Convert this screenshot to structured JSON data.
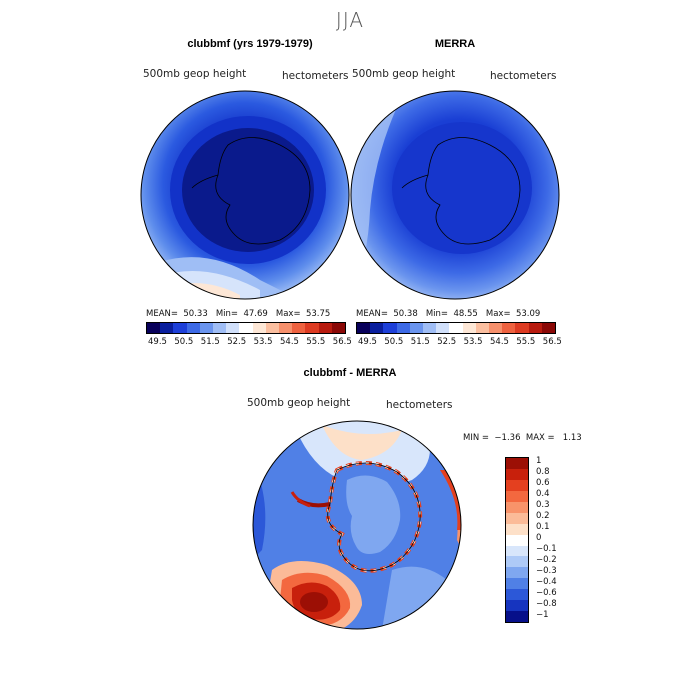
{
  "page": {
    "title": "JJA"
  },
  "panels": [
    {
      "title": "clubbmf (yrs 1979-1979)",
      "left_label": "500mb geop height",
      "right_label": "hectometers",
      "stats": "MEAN=  50.33   Min=  47.69   Max=  53.75"
    },
    {
      "title": "MERRA",
      "left_label": "500mb geop height",
      "right_label": "hectometers",
      "stats": "MEAN=  50.38   Min=  48.55   Max=  53.09"
    }
  ],
  "diff_panel": {
    "title": "clubbmf - MERRA",
    "left_label": "500mb geop height",
    "right_label": "hectometers",
    "stats": "MIN =  −1.36  MAX =   1.13"
  },
  "colorbar_top": {
    "ticks": [
      "49.5",
      "50.5",
      "51.5",
      "52.5",
      "53.5",
      "54.5",
      "55.5",
      "56.5"
    ],
    "colors": [
      "#08005a",
      "#0a1f9e",
      "#1d3fd8",
      "#3d6ae6",
      "#6b95ee",
      "#9fbdf5",
      "#d1e0fb",
      "#ffffff",
      "#fde7d6",
      "#fbbfa0",
      "#f6906c",
      "#ee6240",
      "#dd3b22",
      "#b81b0f",
      "#8a0806"
    ]
  },
  "colorbar_diff": {
    "ticks": [
      "1",
      "0.8",
      "0.6",
      "0.4",
      "0.3",
      "0.2",
      "0.1",
      "0",
      "−0.1",
      "−0.2",
      "−0.3",
      "−0.4",
      "−0.6",
      "−0.8",
      "−1"
    ],
    "colors": [
      "#9c0f05",
      "#c8200c",
      "#e4401f",
      "#f3683f",
      "#f8936a",
      "#fbbb98",
      "#fde0c8",
      "#ffffff",
      "#d8e6fb",
      "#aecaf7",
      "#7fa7f0",
      "#5080e6",
      "#2c58d8",
      "#1634bf",
      "#07108a"
    ]
  }
}
